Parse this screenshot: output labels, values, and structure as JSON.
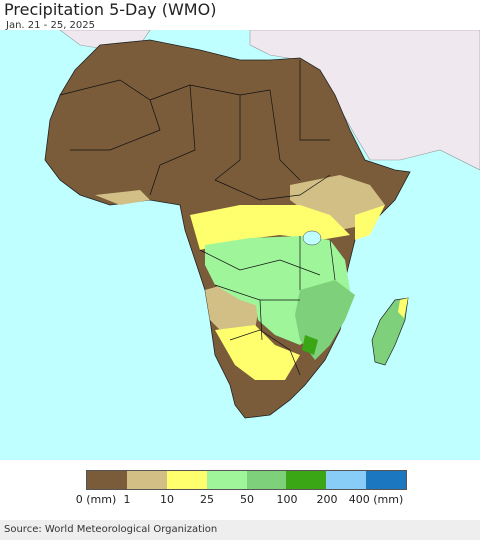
{
  "header": {
    "title": "Precipitation 5-Day (WMO)",
    "date_range": "Jan. 21 - 25, 2025"
  },
  "legend": {
    "unit_label": "(mm)",
    "ticks": [
      "0 (mm)",
      "1",
      "10",
      "25",
      "50",
      "100",
      "200",
      "400 (mm)"
    ],
    "colors": [
      "#7a5c3a",
      "#d2bf85",
      "#ffff6e",
      "#9ef59a",
      "#7fd07a",
      "#3aa616",
      "#88ccf8",
      "#1b77bf"
    ]
  },
  "map": {
    "ocean_color": "#bfffff",
    "land_outside_color": "#efe9ef",
    "region": "Africa"
  },
  "footer": {
    "source": "Source: World Meteorological Organization"
  }
}
